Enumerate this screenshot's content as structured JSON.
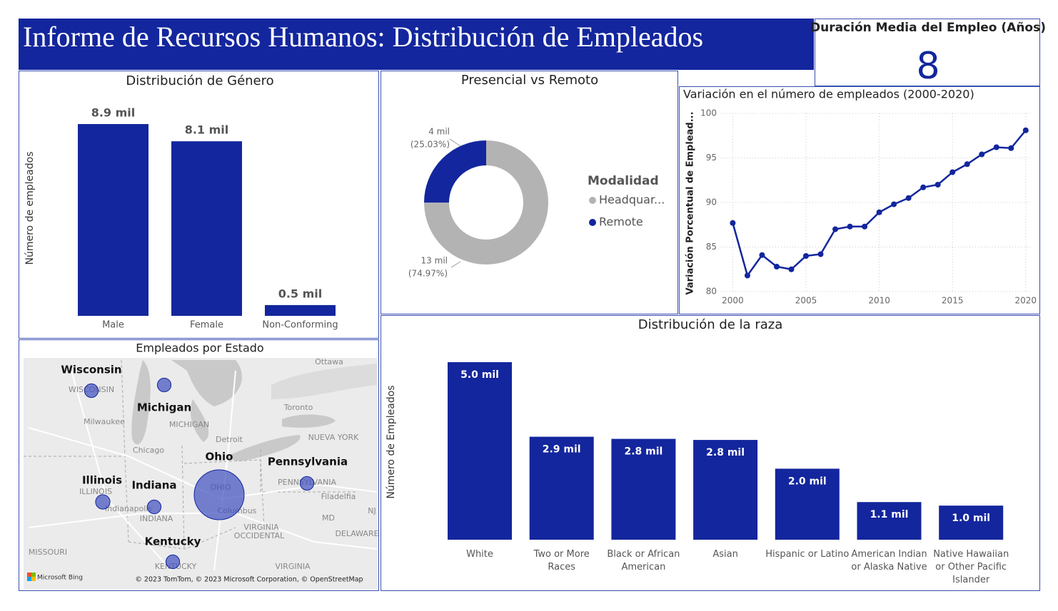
{
  "header": {
    "title": "Informe de Recursos Humanos: Distribución de Empleados"
  },
  "kpi": {
    "title": "Duración Media del Empleo (Años)",
    "value": 8
  },
  "chart_data": [
    {
      "type": "bar",
      "title": "Distribución de Género",
      "y_label": "Número de empleados",
      "categories": [
        "Male",
        "Female",
        "Non-Conforming"
      ],
      "values": [
        8900,
        8100,
        500
      ],
      "value_labels": [
        "8.9 mil",
        "8.1 mil",
        "0.5 mil"
      ],
      "color": "#13269d"
    },
    {
      "type": "pie",
      "title": "Presencial vs Remoto",
      "legend_title": "Modalidad",
      "categories": [
        "Headquar...",
        "Remote"
      ],
      "values": [
        74.97,
        25.03
      ],
      "value_labels": [
        "(74.97%)",
        "(25.03%)"
      ],
      "count_labels": [
        "13 mil",
        "4 mil"
      ],
      "colors": [
        "#b3b3b3",
        "#13269d"
      ]
    },
    {
      "type": "line",
      "title": "Variación en el número de empleados (2000-2020)",
      "y_label": "Variación Porcentual de Emplead...",
      "x": [
        2000,
        2001,
        2002,
        2003,
        2004,
        2005,
        2006,
        2007,
        2008,
        2009,
        2010,
        2011,
        2012,
        2013,
        2014,
        2015,
        2016,
        2017,
        2018,
        2019,
        2020
      ],
      "values": [
        87.7,
        81.8,
        84.1,
        82.8,
        82.5,
        84.0,
        84.2,
        87.0,
        87.3,
        87.3,
        88.9,
        89.8,
        90.5,
        91.7,
        92.0,
        93.4,
        94.3,
        95.4,
        96.2,
        96.1,
        98.1
      ],
      "color": "#13269d",
      "xlim": [
        1999.2,
        2020.4
      ],
      "xticks": [
        2000,
        2005,
        2010,
        2015,
        2020
      ],
      "ylim": [
        80,
        100
      ],
      "yticks": [
        80,
        85,
        90,
        95,
        100
      ],
      "grid": true
    },
    {
      "type": "bar",
      "title": "Distribución de la raza",
      "y_label": "Número de Empleados",
      "categories": [
        "White",
        "Two or More Races",
        "Black or African American",
        "Asian",
        "Hispanic or Latino",
        "American Indian or Alaska Native",
        "Native Hawaiian or Other Pacific Islander"
      ],
      "values": [
        5000,
        2900,
        2840,
        2810,
        2000,
        1060,
        960
      ],
      "value_labels": [
        "5.0 mil",
        "2.9 mil",
        "2.8 mil",
        "2.8 mil",
        "2.0 mil",
        "1.1 mil",
        "1.0 mil"
      ],
      "color": "#13269d"
    },
    {
      "type": "map",
      "title": "Empleados por Estado",
      "categories": [
        "Wisconsin",
        "Michigan",
        "Illinois",
        "Indiana",
        "Ohio",
        "Pennsylvania",
        "Kentucky"
      ],
      "values": [
        900,
        900,
        1000,
        900,
        12000,
        900,
        900
      ],
      "color": "#3f4fbf",
      "place_labels": [
        "Ottawa",
        "Toronto",
        "Milwaukee",
        "WISCONSIN",
        "MICHIGAN",
        "Detroit",
        "NUEVA YORK",
        "Chicago",
        "ILLINOIS",
        "Indianapolis",
        "INDIANA",
        "OHIO",
        "Columbus",
        "PENNSYLVANIA",
        "Filadelfia",
        "MD",
        "NJ",
        "VIRGINIA",
        "OCCIDENTAL",
        "DELAWARE",
        "MISSOURI",
        "KENTUCKY",
        "VIRGINIA"
      ],
      "brand": "Microsoft Bing",
      "credits": "© 2023 TomTom, © 2023 Microsoft Corporation, © OpenStreetMap"
    }
  ]
}
